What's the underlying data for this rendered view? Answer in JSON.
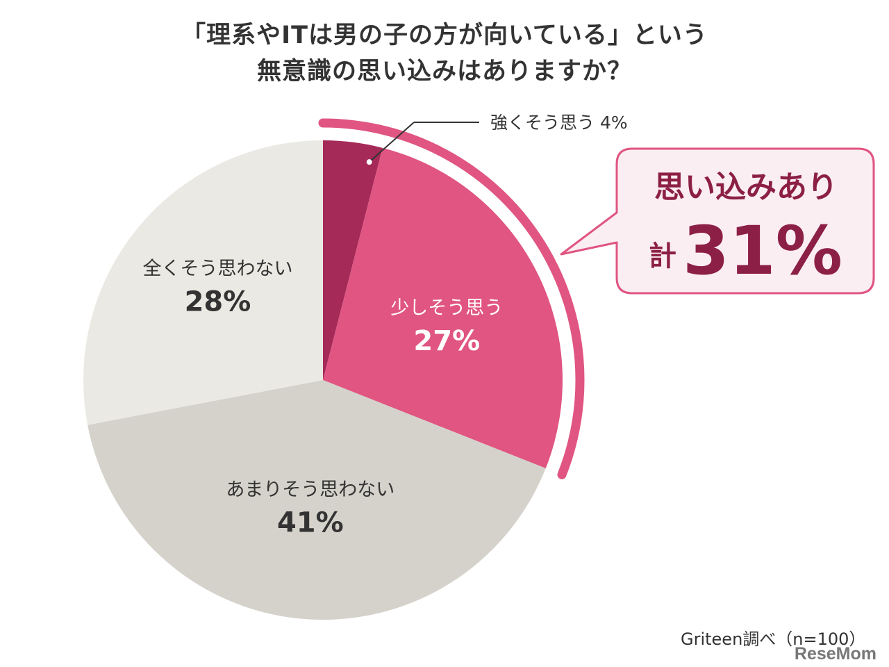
{
  "title": {
    "line1": "「理系やITは男の子の方が向いている」という",
    "line2": "無意識の思い込みはありますか？"
  },
  "chart_data": {
    "type": "pie",
    "start": "12 o'clock",
    "direction": "clockwise",
    "slices": [
      {
        "label": "強くそう思う",
        "value": 4,
        "value_label": "4%",
        "color": "#a52a58"
      },
      {
        "label": "少しそう思う",
        "value": 27,
        "value_label": "27%",
        "color": "#e05581"
      },
      {
        "label": "あまりそう思わない",
        "value": 41,
        "value_label": "41%",
        "color": "#d4d2ca"
      },
      {
        "label": "全くそう思わない",
        "value": 28,
        "value_label": "28%",
        "color": "#ebe9e3"
      }
    ],
    "callout": {
      "line1": "思い込みあり",
      "prefix": "計",
      "value": "31%",
      "border_color": "#e05581",
      "fill_color": "#fbeef2",
      "text_color": "#8c1f45"
    }
  },
  "source": "Griteen調べ（n=100）",
  "watermark": "ReseMom"
}
